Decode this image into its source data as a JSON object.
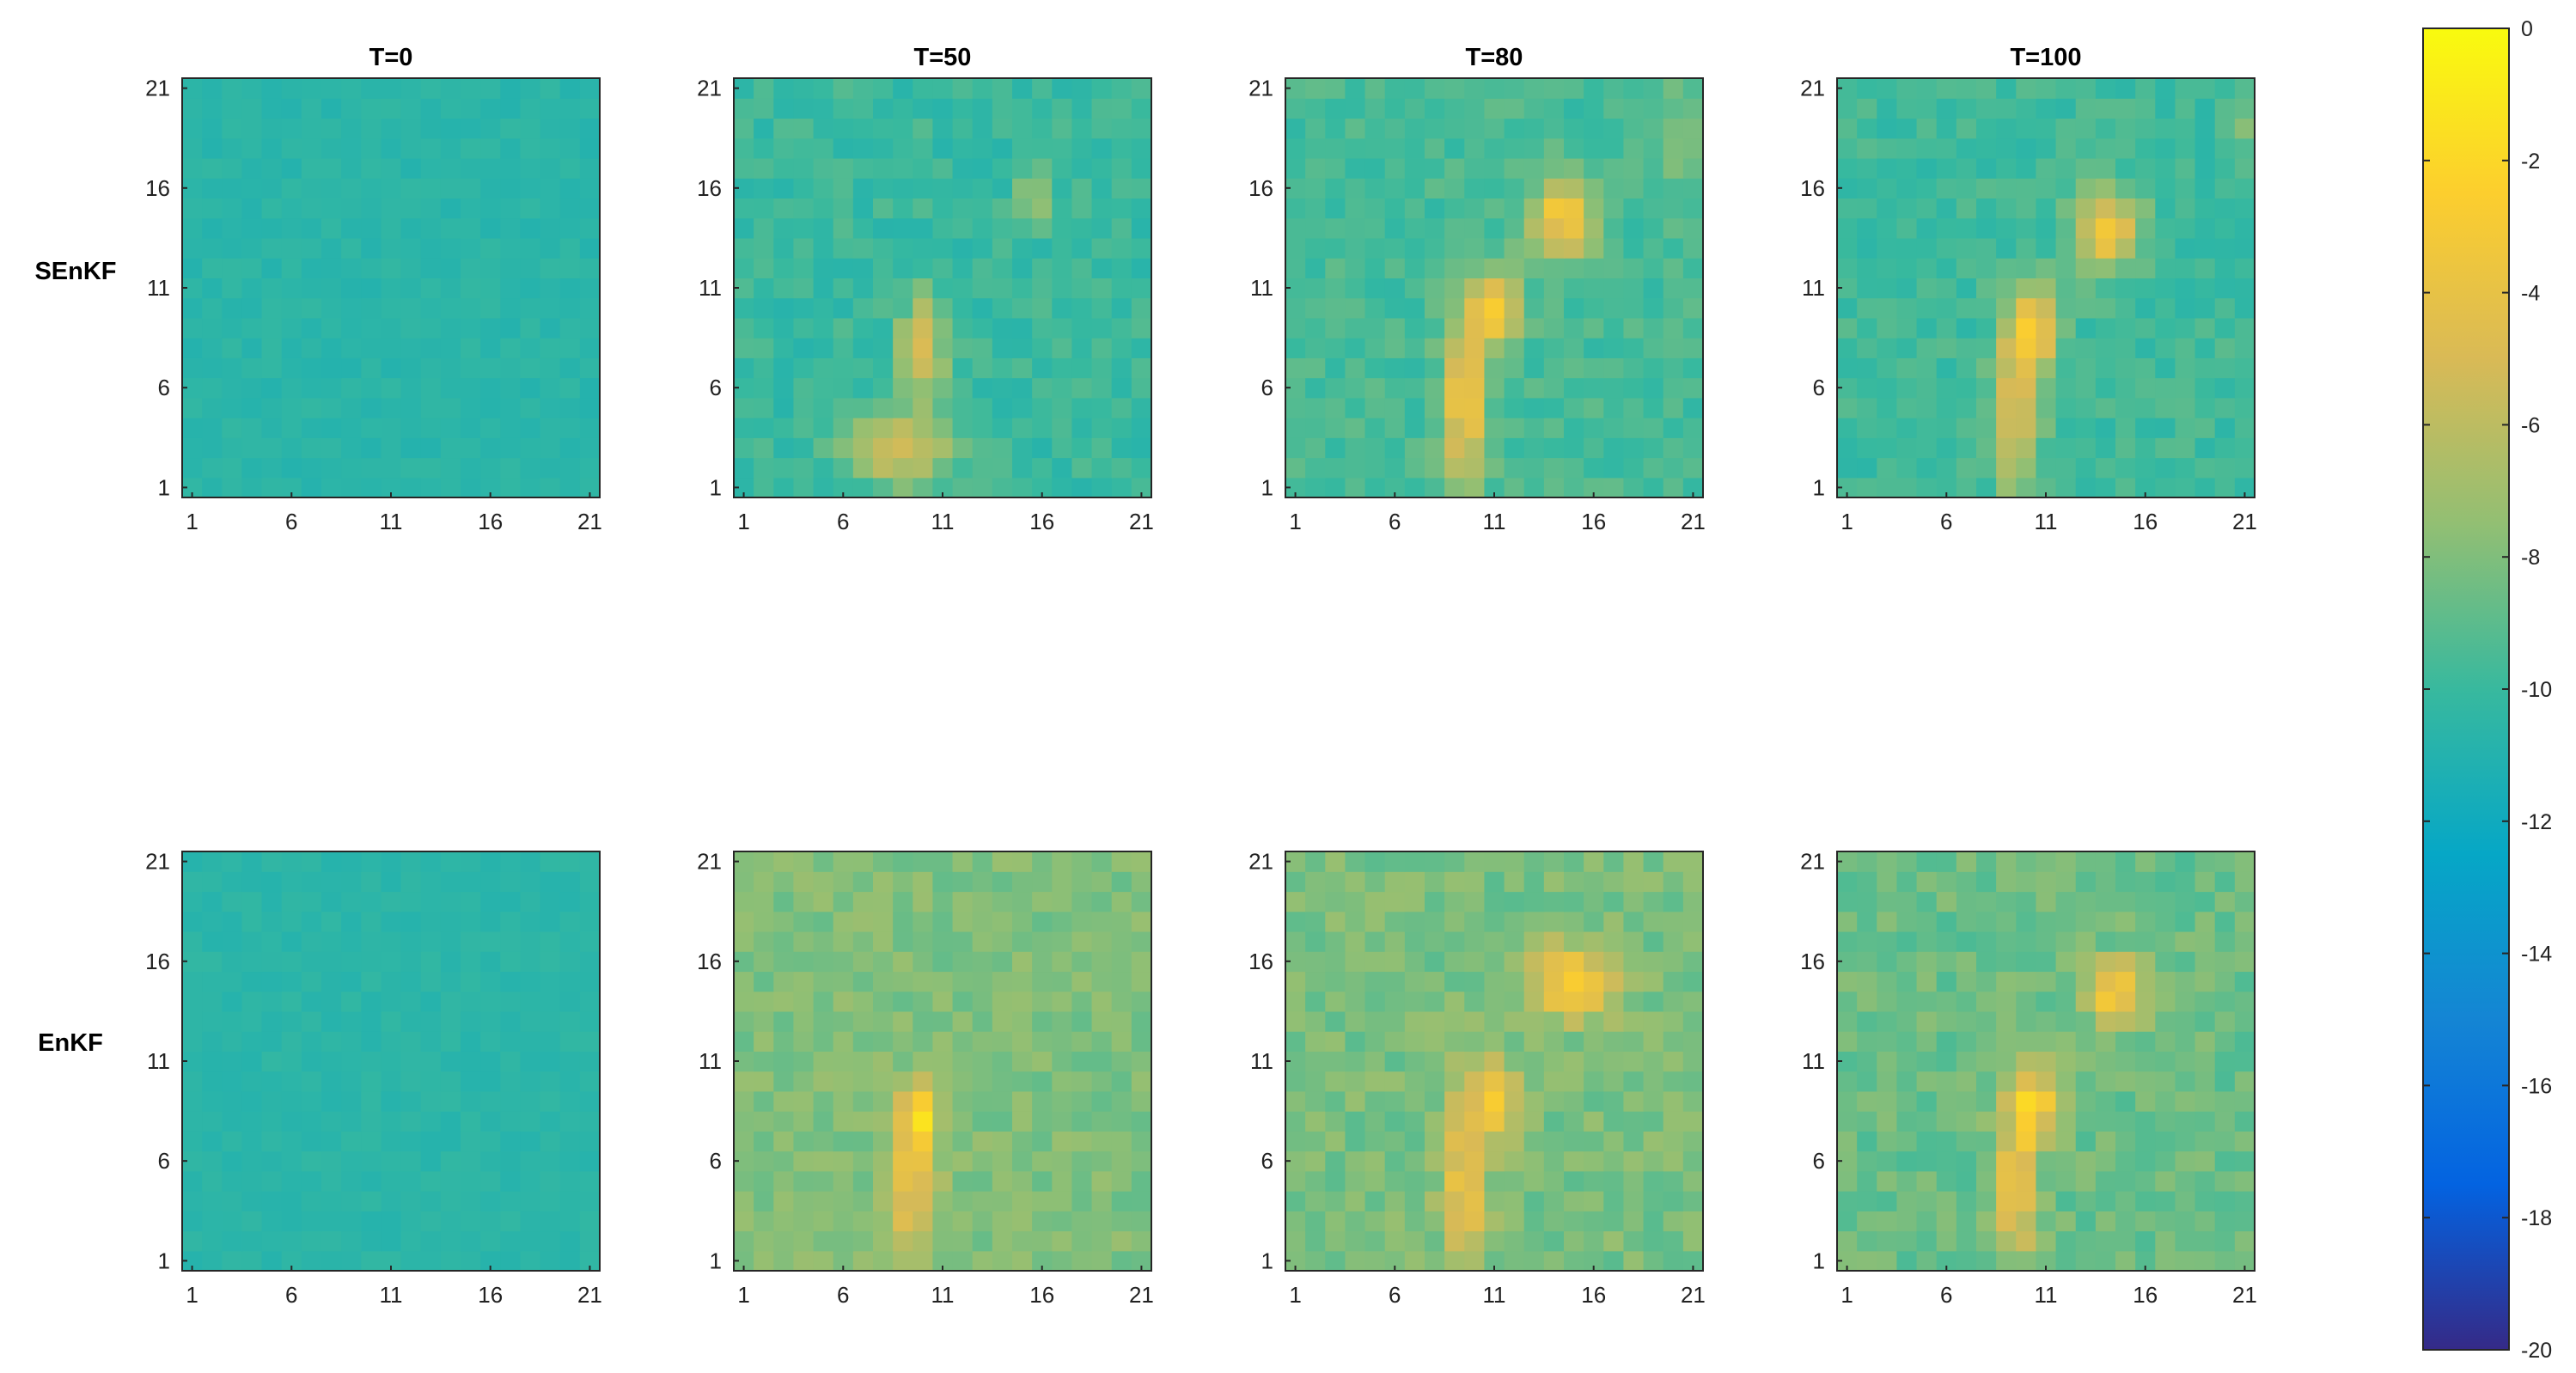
{
  "chart_data": {
    "type": "heatmap",
    "row_labels": [
      "SEnKF",
      "EnKF"
    ],
    "column_titles": [
      "T=0",
      "T=50",
      "T=80",
      "T=100"
    ],
    "x_ticks": [
      "1",
      "6",
      "11",
      "16",
      "21"
    ],
    "y_ticks": [
      "1",
      "6",
      "11",
      "16",
      "21"
    ],
    "grid_size": 21,
    "colorbar": {
      "colormap": "parula",
      "range": [
        -20,
        0
      ],
      "ticks": [
        "0",
        "-2",
        "-4",
        "-6",
        "-8",
        "-10",
        "-12",
        "-14",
        "-16",
        "-18",
        "-20"
      ],
      "tick_values": [
        0,
        -2,
        -4,
        -6,
        -8,
        -10,
        -12,
        -14,
        -16,
        -18,
        -20
      ]
    },
    "panels": [
      {
        "row": "SEnKF",
        "time": "T=0",
        "background": -10.6,
        "noise": 0.35,
        "features": []
      },
      {
        "row": "SEnKF",
        "time": "T=50",
        "background": -10.0,
        "noise": 0.8,
        "features": [
          {
            "x": 9,
            "y": 3,
            "rx": 2.6,
            "ry": 1.8,
            "value": -5.0
          },
          {
            "x": 10,
            "y": 8,
            "rx": 1.1,
            "ry": 2.5,
            "value": -4.5
          },
          {
            "x": 15.5,
            "y": 15.5,
            "rx": 0.8,
            "ry": 1.3,
            "value": -6.8
          }
        ]
      },
      {
        "row": "SEnKF",
        "time": "T=80",
        "background": -9.6,
        "noise": 0.8,
        "features": [
          {
            "x": 9.5,
            "y": 5,
            "rx": 1.1,
            "ry": 4.5,
            "value": -3.6
          },
          {
            "x": 11,
            "y": 10,
            "rx": 1.2,
            "ry": 2.0,
            "value": -3.0
          },
          {
            "x": 14.5,
            "y": 14.5,
            "rx": 1.6,
            "ry": 2.0,
            "value": -3.0
          },
          {
            "x": 20.5,
            "y": 19,
            "rx": 0.6,
            "ry": 2.5,
            "value": -6.5
          }
        ]
      },
      {
        "row": "SEnKF",
        "time": "T=100",
        "background": -9.8,
        "noise": 0.8,
        "features": [
          {
            "x": 9.5,
            "y": 5,
            "rx": 1.1,
            "ry": 4.5,
            "value": -4.0
          },
          {
            "x": 10.5,
            "y": 9,
            "rx": 1.2,
            "ry": 2.0,
            "value": -3.4
          },
          {
            "x": 14,
            "y": 14,
            "rx": 1.6,
            "ry": 2.0,
            "value": -3.2
          },
          {
            "x": 20.5,
            "y": 19.5,
            "rx": 0.6,
            "ry": 1.6,
            "value": -6.8
          }
        ]
      },
      {
        "row": "EnKF",
        "time": "T=0",
        "background": -10.6,
        "noise": 0.3,
        "features": []
      },
      {
        "row": "EnKF",
        "time": "T=50",
        "background": -8.0,
        "noise": 0.8,
        "features": [
          {
            "x": 9.5,
            "y": 5,
            "rx": 1.1,
            "ry": 3.8,
            "value": -3.8
          },
          {
            "x": 10,
            "y": 8.5,
            "rx": 1.0,
            "ry": 1.5,
            "value": -3.4
          }
        ]
      },
      {
        "row": "EnKF",
        "time": "T=80",
        "background": -8.2,
        "noise": 0.9,
        "features": [
          {
            "x": 9.5,
            "y": 5,
            "rx": 1.1,
            "ry": 4.2,
            "value": -3.6
          },
          {
            "x": 11,
            "y": 9,
            "rx": 1.2,
            "ry": 2.0,
            "value": -3.2
          },
          {
            "x": 15,
            "y": 15,
            "rx": 2.2,
            "ry": 1.8,
            "value": -2.6
          }
        ]
      },
      {
        "row": "EnKF",
        "time": "T=100",
        "background": -8.6,
        "noise": 0.9,
        "features": [
          {
            "x": 9.5,
            "y": 5,
            "rx": 1.1,
            "ry": 4.2,
            "value": -3.8
          },
          {
            "x": 10.5,
            "y": 9,
            "rx": 1.2,
            "ry": 2.0,
            "value": -3.4
          },
          {
            "x": 14.5,
            "y": 14.5,
            "rx": 1.5,
            "ry": 1.6,
            "value": -2.8
          }
        ]
      }
    ]
  }
}
